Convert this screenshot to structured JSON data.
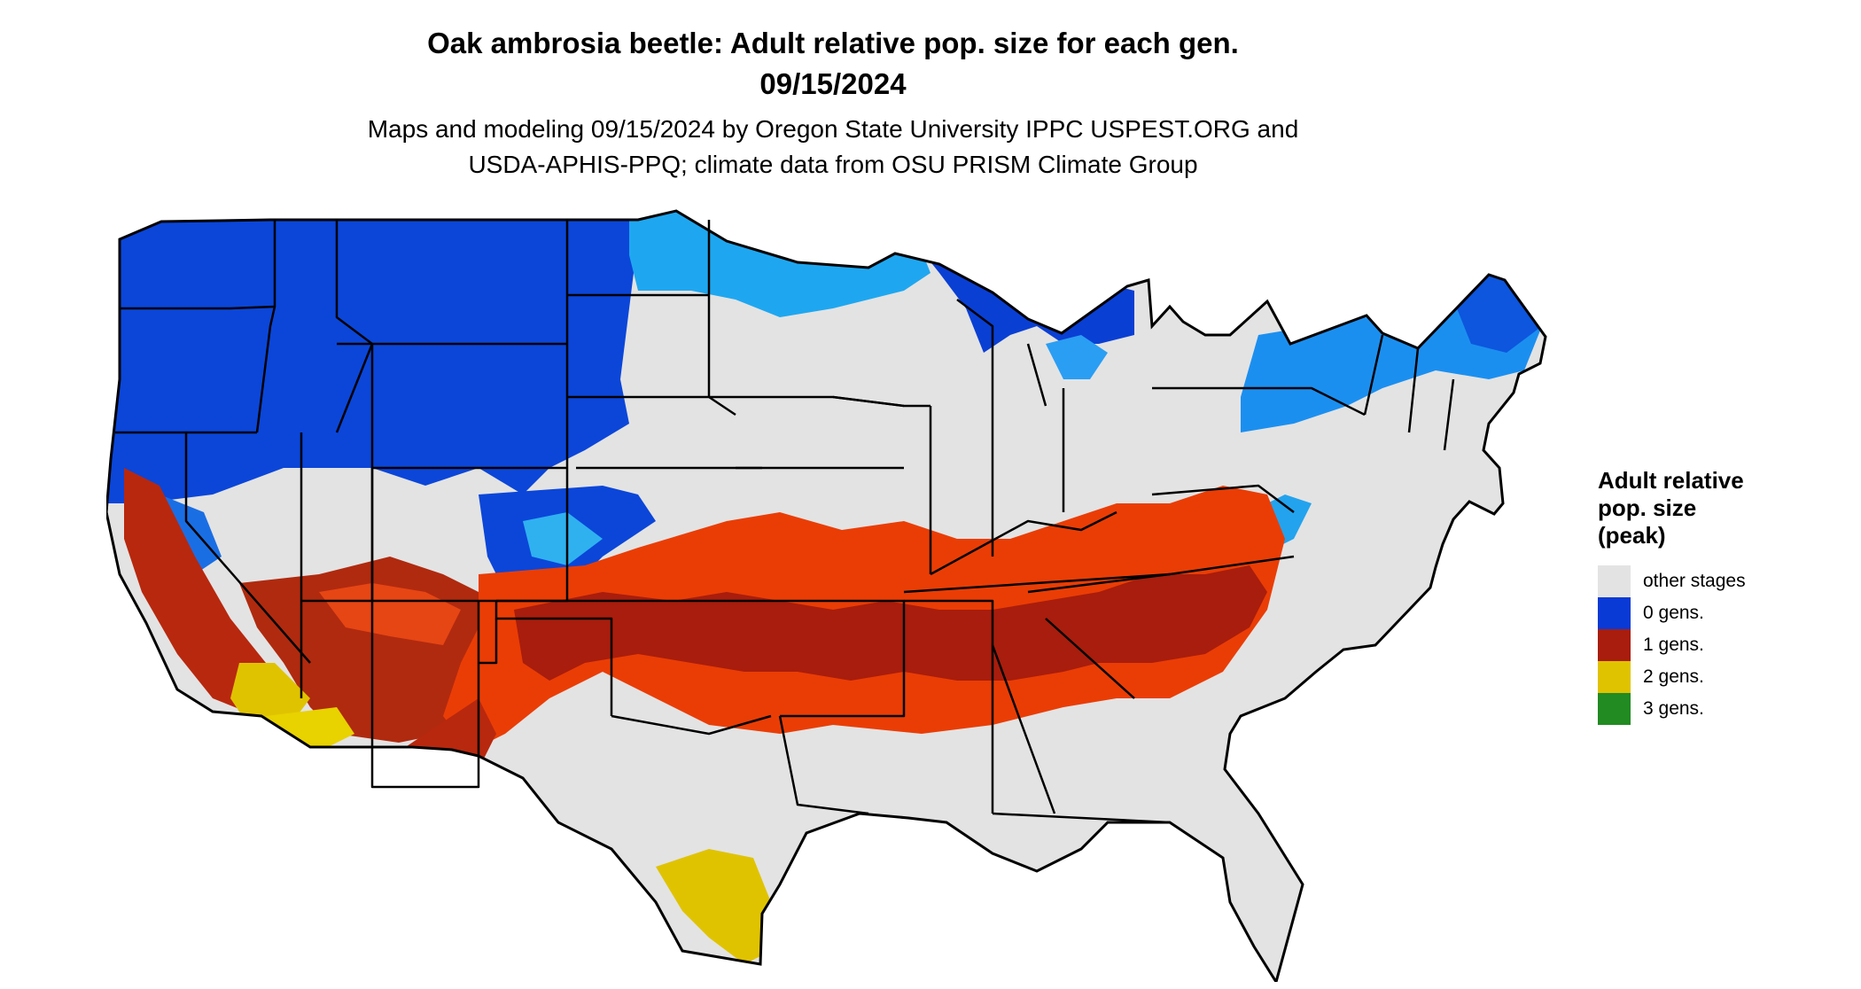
{
  "title_line1": "Oak ambrosia beetle: Adult relative pop. size for each gen.",
  "title_line2": "09/15/2024",
  "subtitle_line1": "Maps and modeling 09/15/2024 by Oregon State University IPPC USPEST.ORG and",
  "subtitle_line2": "USDA-APHIS-PPQ; climate data from OSU PRISM Climate Group",
  "legend": {
    "title_line1": "Adult relative",
    "title_line2": "pop. size",
    "title_line3": "(peak)",
    "items": [
      {
        "label": "other stages",
        "color": "#e3e3e3"
      },
      {
        "label": "0 gens.",
        "color": "#0a3ad6"
      },
      {
        "label": "1 gens.",
        "color": "#a81d0d"
      },
      {
        "label": "2 gens.",
        "color": "#e0c300"
      },
      {
        "label": "3 gens.",
        "color": "#228b22"
      }
    ]
  },
  "palette": {
    "background": "#ffffff",
    "other_stages": "#e3e3e3",
    "zero_gens_dark": "#0a3ad6",
    "zero_gens_light": "#1ea7f0",
    "one_gen_dark": "#a81d0d",
    "one_gen_light": "#ea3d05",
    "two_gens": "#e0c300",
    "three_gens": "#228b22",
    "borders": "#000000"
  }
}
